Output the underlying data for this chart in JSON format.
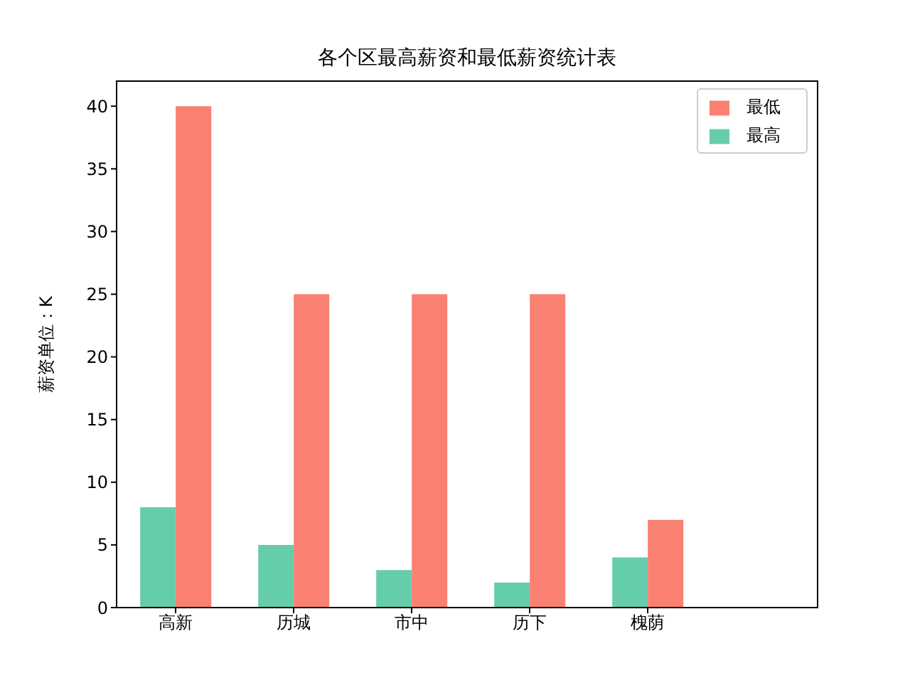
{
  "chart_data": {
    "type": "bar",
    "title": "各个区最高薪资和最低薪资统计表",
    "ylabel": "薪资单位：K",
    "categories": [
      "高新",
      "历城",
      "市中",
      "历下",
      "槐荫"
    ],
    "series": [
      {
        "name": "最高",
        "color": "#66cdaa",
        "values": [
          8,
          5,
          3,
          2,
          4
        ]
      },
      {
        "name": "最低",
        "color": "#fa8072",
        "values": [
          40,
          25,
          25,
          25,
          7
        ]
      }
    ],
    "ylim": [
      0,
      42
    ],
    "yticks": [
      0,
      5,
      10,
      15,
      20,
      25,
      30,
      35,
      40
    ],
    "grid": false,
    "legend": "top right"
  }
}
